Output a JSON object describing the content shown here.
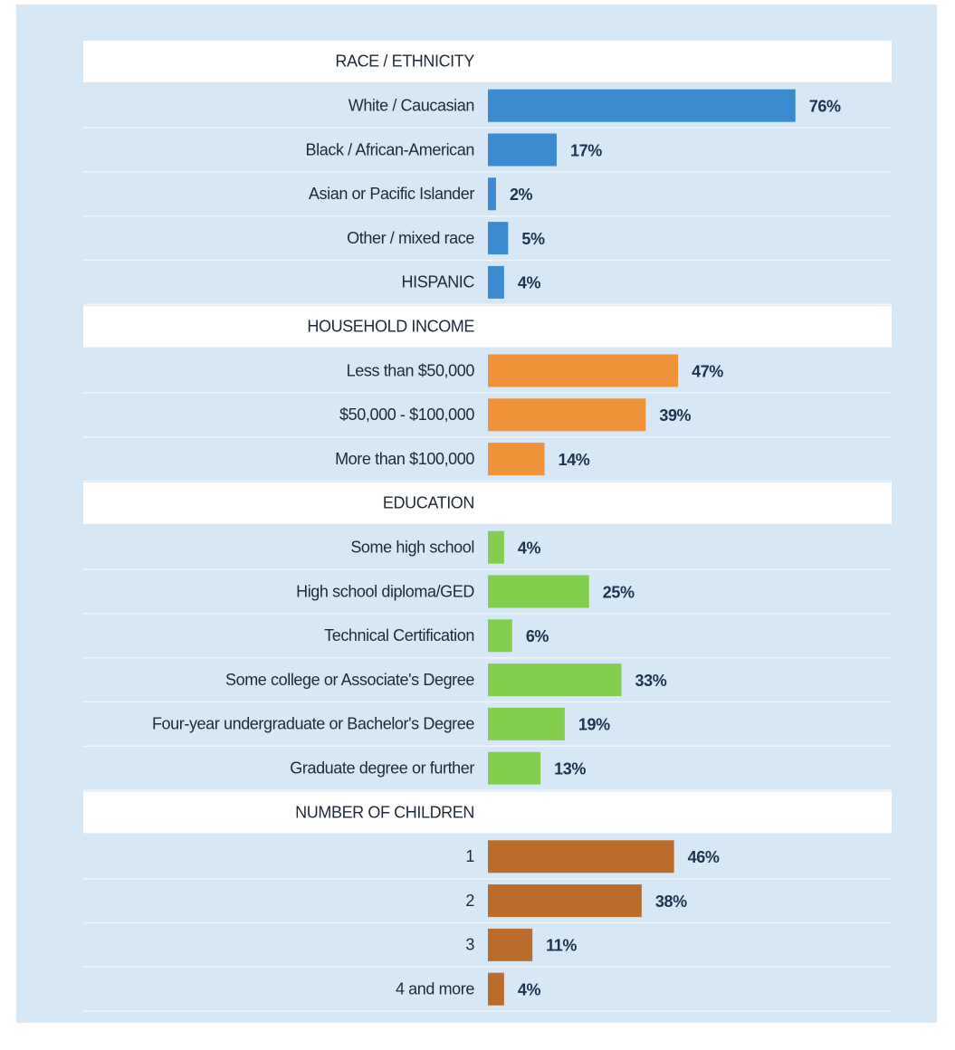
{
  "chart_data": {
    "type": "bar",
    "groups": [
      {
        "name": "RACE / ETHNICITY",
        "color": "#3a8bd0",
        "categories": [
          "White / Caucasian",
          "Black / African-American",
          "Asian or Pacific Islander",
          "Other / mixed race",
          "HISPANIC"
        ],
        "values": [
          76,
          17,
          2,
          5,
          4
        ],
        "value_labels": [
          "76%",
          "17%",
          "2%",
          "5%",
          "4%"
        ]
      },
      {
        "name": "HOUSEHOLD INCOME",
        "color": "#f0923a",
        "categories": [
          "Less than $50,000",
          "$50,000 - $100,000",
          "More than $100,000"
        ],
        "values": [
          47,
          39,
          14
        ],
        "value_labels": [
          "47%",
          "39%",
          "14%"
        ]
      },
      {
        "name": "EDUCATION",
        "color": "#82cf50",
        "categories": [
          "Some high school",
          "High school diploma/GED",
          "Technical Certification",
          "Some college or Associate's Degree",
          "Four-year undergraduate or Bachelor's Degree",
          "Graduate degree or further"
        ],
        "values": [
          4,
          25,
          6,
          33,
          19,
          13
        ],
        "value_labels": [
          "4%",
          "25%",
          "6%",
          "33%",
          "19%",
          "13%"
        ]
      },
      {
        "name": "NUMBER OF CHILDREN",
        "color": "#bc6c2a",
        "categories": [
          "1",
          "2",
          "3",
          "4 and more"
        ],
        "values": [
          46,
          38,
          11,
          4
        ],
        "value_labels": [
          "46%",
          "38%",
          "11%",
          "4%"
        ]
      }
    ]
  }
}
